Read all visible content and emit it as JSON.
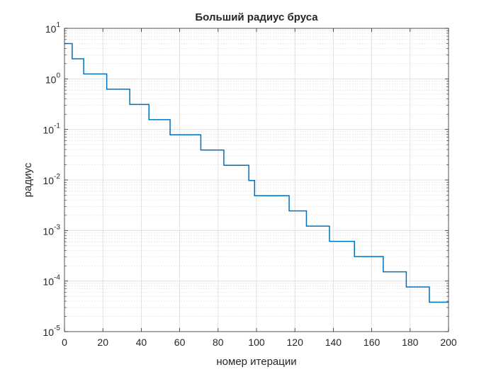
{
  "chart_data": {
    "type": "line",
    "title": "Больший радиус бруса",
    "xlabel": "номер итерации",
    "ylabel": "радиус",
    "x_ticks": [
      "0",
      "20",
      "40",
      "60",
      "80",
      "100",
      "120",
      "140",
      "160",
      "180",
      "200"
    ],
    "y_ticks": [
      {
        "base": "10",
        "exp": "1"
      },
      {
        "base": "10",
        "exp": "0"
      },
      {
        "base": "10",
        "exp": "-1"
      },
      {
        "base": "10",
        "exp": "-2"
      },
      {
        "base": "10",
        "exp": "-3"
      },
      {
        "base": "10",
        "exp": "-4"
      },
      {
        "base": "10",
        "exp": "-5"
      }
    ],
    "xlim": [
      0,
      200
    ],
    "ylim": [
      1e-05,
      10
    ],
    "y_scale": "log",
    "grid": true,
    "minor_grid": true,
    "line_color": "#0072BD",
    "steps": [
      {
        "x_start": 0,
        "x_end": 4,
        "y": 5
      },
      {
        "x_start": 4,
        "x_end": 10,
        "y": 2.5
      },
      {
        "x_start": 10,
        "x_end": 22,
        "y": 1.25
      },
      {
        "x_start": 22,
        "x_end": 34,
        "y": 0.625
      },
      {
        "x_start": 34,
        "x_end": 44,
        "y": 0.3125
      },
      {
        "x_start": 44,
        "x_end": 55,
        "y": 0.15625
      },
      {
        "x_start": 55,
        "x_end": 71,
        "y": 0.078125
      },
      {
        "x_start": 71,
        "x_end": 83,
        "y": 0.0390625
      },
      {
        "x_start": 83,
        "x_end": 96,
        "y": 0.01953125
      },
      {
        "x_start": 96,
        "x_end": 99,
        "y": 0.009765625
      },
      {
        "x_start": 99,
        "x_end": 117,
        "y": 0.0048828125
      },
      {
        "x_start": 117,
        "x_end": 126,
        "y": 0.00244140625
      },
      {
        "x_start": 126,
        "x_end": 138,
        "y": 0.001220703125
      },
      {
        "x_start": 138,
        "x_end": 151,
        "y": 0.0006103515625
      },
      {
        "x_start": 151,
        "x_end": 166,
        "y": 0.00030517578125
      },
      {
        "x_start": 166,
        "x_end": 178,
        "y": 0.000152587890625
      },
      {
        "x_start": 178,
        "x_end": 190,
        "y": 7.62939453125e-05
      },
      {
        "x_start": 190,
        "x_end": 200,
        "y": 3.814697265625e-05
      }
    ]
  }
}
